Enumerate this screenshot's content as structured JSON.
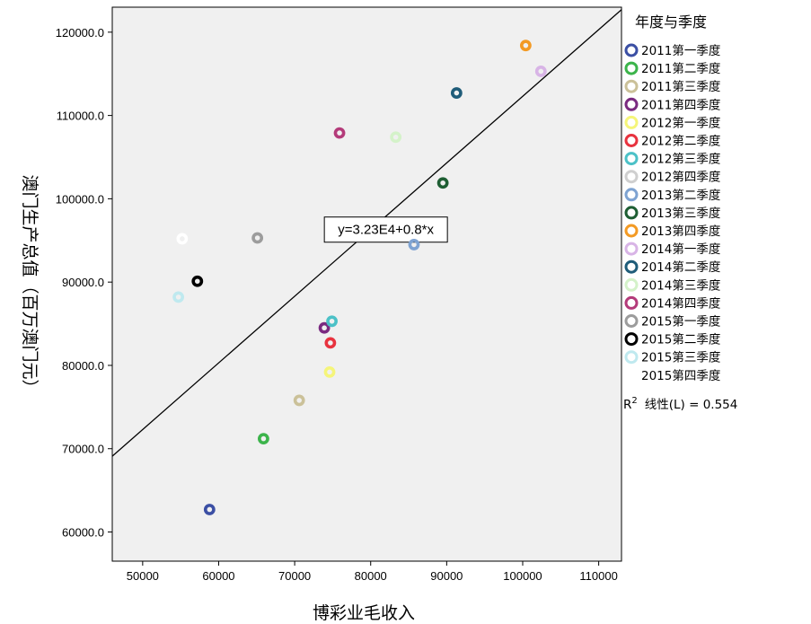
{
  "chart_data": {
    "type": "scatter",
    "xlabel": "博彩业毛收入",
    "ylabel": "澳门生产总值（百万澳门元）",
    "xlim": [
      46000,
      113000
    ],
    "ylim": [
      56500,
      123000
    ],
    "xticks": [
      50000,
      60000,
      70000,
      80000,
      90000,
      100000,
      110000
    ],
    "xtick_labels": [
      "50000",
      "60000",
      "70000",
      "80000",
      "90000",
      "100000",
      "110000"
    ],
    "yticks": [
      60000,
      70000,
      80000,
      90000,
      100000,
      110000,
      120000
    ],
    "ytick_labels": [
      "60000.0",
      "70000.0",
      "80000.0",
      "90000.0",
      "100000.0",
      "110000.0",
      "120000.0"
    ],
    "grid": false,
    "background": "#f0f0f0",
    "legend_title": "年度与季度",
    "legend_position": "right",
    "series": [
      {
        "name": "2011第一季度",
        "color": "#3b4fa4",
        "points": [
          [
            58800,
            62700
          ]
        ]
      },
      {
        "name": "2011第二季度",
        "color": "#3cb44b",
        "points": [
          [
            65900,
            71200
          ]
        ]
      },
      {
        "name": "2011第三季度",
        "color": "#cbc199",
        "points": [
          [
            70600,
            75800
          ]
        ]
      },
      {
        "name": "2011第四季度",
        "color": "#7a2a80",
        "points": [
          [
            73900,
            84500
          ]
        ]
      },
      {
        "name": "2012第一季度",
        "color": "#f5f57a",
        "points": [
          [
            74600,
            79200
          ]
        ]
      },
      {
        "name": "2012第二季度",
        "color": "#e8333f",
        "points": [
          [
            74700,
            82700
          ]
        ]
      },
      {
        "name": "2012第三季度",
        "color": "#4cc1c7",
        "points": [
          [
            74900,
            85300
          ]
        ]
      },
      {
        "name": "2012第四季度",
        "color": "#cfcfcf",
        "points": []
      },
      {
        "name": "2013第二季度",
        "color": "#7ea3d2",
        "points": [
          [
            85700,
            94500
          ]
        ]
      },
      {
        "name": "2013第三季度",
        "color": "#1e5e33",
        "points": [
          [
            89500,
            101900
          ]
        ]
      },
      {
        "name": "2013第四季度",
        "color": "#f39a24",
        "points": [
          [
            100400,
            118400
          ]
        ]
      },
      {
        "name": "2014第一季度",
        "color": "#d8b4e6",
        "points": [
          [
            102400,
            115300
          ]
        ]
      },
      {
        "name": "2014第二季度",
        "color": "#1f5c79",
        "points": [
          [
            91300,
            112700
          ]
        ]
      },
      {
        "name": "2014第三季度",
        "color": "#d4f2c9",
        "points": [
          [
            83300,
            107400
          ]
        ]
      },
      {
        "name": "2014第四季度",
        "color": "#b43b7a",
        "points": [
          [
            75900,
            107900
          ]
        ]
      },
      {
        "name": "2015第一季度",
        "color": "#9c9c9c",
        "points": [
          [
            65100,
            95300
          ]
        ]
      },
      {
        "name": "2015第二季度",
        "color": "#000000",
        "points": [
          [
            57200,
            90100
          ]
        ]
      },
      {
        "name": "2015第三季度",
        "color": "#bfe9ef",
        "points": [
          [
            54700,
            88200
          ]
        ]
      },
      {
        "name": "2015第四季度",
        "color": "#ffffff",
        "points": [
          [
            55200,
            95200
          ]
        ]
      }
    ],
    "fit_line": {
      "intercept": 32300,
      "slope": 0.8,
      "label": "y=3.23E4+0.8*x",
      "label_anchor": [
        82000,
        96300
      ]
    },
    "r2_prefix": "R",
    "r2_sup": "2",
    "r2_text": "线性(L) = 0.554"
  }
}
